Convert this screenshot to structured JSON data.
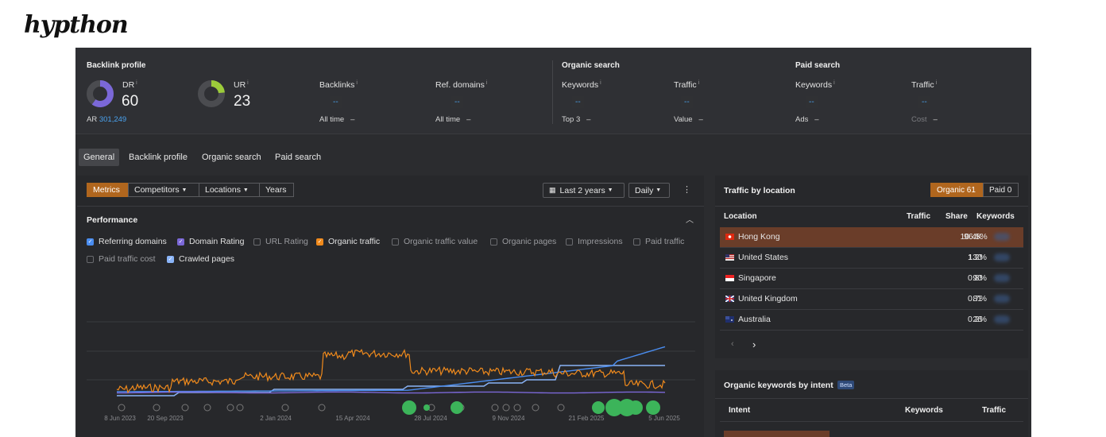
{
  "brand": "hypthon",
  "backlink": {
    "title": "Backlink profile",
    "dr_label": "DR",
    "dr_value": "60",
    "ur_label": "UR",
    "ur_value": "23",
    "ar_label": "AR",
    "ar_value": "301,249",
    "backlinks_label": "Backlinks",
    "backlinks_value": "--",
    "backlinks_sub": "All time",
    "backlinks_sub_val": "–",
    "refdomains_label": "Ref. domains",
    "refdomains_value": "--",
    "refdomains_sub": "All time",
    "refdomains_sub_val": "–"
  },
  "organic": {
    "title": "Organic search",
    "keywords_label": "Keywords",
    "keywords_value": "--",
    "keywords_sub": "Top 3",
    "keywords_sub_val": "–",
    "traffic_label": "Traffic",
    "traffic_value": "--",
    "traffic_sub": "Value",
    "traffic_sub_val": "–"
  },
  "paid": {
    "title": "Paid search",
    "keywords_label": "Keywords",
    "keywords_value": "--",
    "keywords_sub": "Ads",
    "keywords_sub_val": "–",
    "traffic_label": "Traffic",
    "traffic_value": "--",
    "traffic_sub": "Cost",
    "traffic_sub_val": "–"
  },
  "info_mark": "i",
  "tabs": [
    "General",
    "Backlink profile",
    "Organic search",
    "Paid search"
  ],
  "toolbar": {
    "segments": [
      "Metrics",
      "Competitors",
      "Locations",
      "Years"
    ],
    "date_range": "Last 2 years",
    "interval": "Daily"
  },
  "performance": {
    "title": "Performance",
    "checkboxes": [
      {
        "label": "Referring domains",
        "checked": true,
        "color": "#4a8df0"
      },
      {
        "label": "Domain Rating",
        "checked": true,
        "color": "#7b68d8"
      },
      {
        "label": "URL Rating",
        "checked": false
      },
      {
        "label": "Organic traffic",
        "checked": true,
        "color": "#f08a1c"
      },
      {
        "label": "Organic traffic value",
        "checked": false
      },
      {
        "label": "Organic pages",
        "checked": false
      },
      {
        "label": "Impressions",
        "checked": false
      },
      {
        "label": "Paid traffic",
        "checked": false
      },
      {
        "label": "Paid traffic cost",
        "checked": false
      },
      {
        "label": "Crawled pages",
        "checked": true,
        "color": "#8ab4f8"
      }
    ],
    "x_ticks": [
      "8 Jun 2023",
      "20 Sep 2023",
      "2 Jan 2024",
      "15 Apr 2024",
      "28 Jul 2024",
      "9 Nov 2024",
      "21 Feb 2025",
      "5 Jun 2025"
    ]
  },
  "traffic_location": {
    "title": "Traffic by location",
    "organic_label": "Organic",
    "organic_count": "61",
    "paid_label": "Paid",
    "paid_count": "0",
    "headers": {
      "location": "Location",
      "traffic": "Traffic",
      "share": "Share",
      "keywords": "Keywords"
    },
    "rows": [
      {
        "country": "Hong Kong",
        "traffic": "10.4K",
        "share": "96.5%"
      },
      {
        "country": "United States",
        "traffic": "130",
        "share": "1.2%"
      },
      {
        "country": "Singapore",
        "traffic": "90",
        "share": "0.8%"
      },
      {
        "country": "United Kingdom",
        "traffic": "81",
        "share": "0.7%"
      },
      {
        "country": "Australia",
        "traffic": "26",
        "share": "0.2%"
      }
    ]
  },
  "intent": {
    "title": "Organic keywords by intent",
    "badge": "Beta",
    "headers": {
      "intent": "Intent",
      "keywords": "Keywords",
      "traffic": "Traffic"
    }
  },
  "colors": {
    "accent": "#b0661e",
    "referring_domains": "#4a8df0",
    "domain_rating": "#7b68d8",
    "organic_traffic": "#f08a1c",
    "crawled_pages": "#8ab4f8"
  }
}
